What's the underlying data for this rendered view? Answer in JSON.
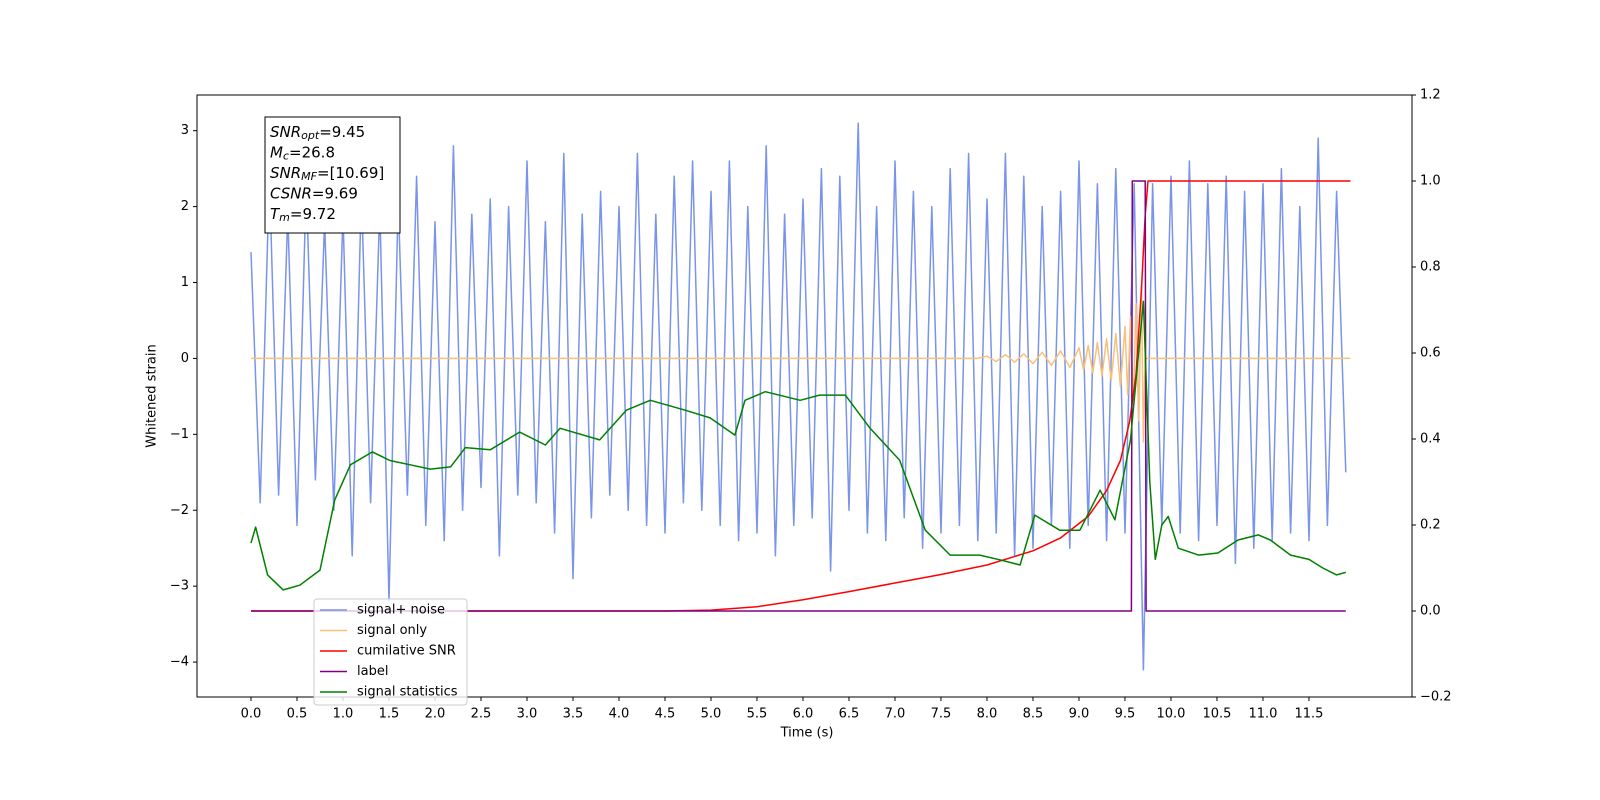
{
  "chart_data": {
    "type": "line",
    "xlabel": "Time (s)",
    "ylabel": "Whitened strain",
    "xlim": [
      -0.587,
      12.62
    ],
    "ylim": [
      -4.46,
      3.47
    ],
    "y2lim": [
      -0.2,
      1.2
    ],
    "xticks": [
      {
        "value": 0,
        "label": "0.0"
      },
      0.5,
      {
        "value": 1,
        "label": "1.0"
      },
      1.5,
      {
        "value": 2,
        "label": "2.0"
      },
      2.5,
      {
        "value": 3,
        "label": "3.0"
      },
      3.5,
      {
        "value": 4,
        "label": "4.0"
      },
      4.5,
      {
        "value": 5,
        "label": "5.0"
      },
      5.5,
      {
        "value": 6,
        "label": "6.0"
      },
      6.5,
      {
        "value": 7,
        "label": "7.0"
      },
      7.5,
      {
        "value": 8,
        "label": "8.0"
      },
      8.5,
      {
        "value": 9,
        "label": "9.0"
      },
      9.5,
      {
        "value": 10,
        "label": "10.0"
      },
      10.5,
      {
        "value": 11,
        "label": "11.0"
      },
      11.5
    ],
    "yticks": [
      {
        "value": -4,
        "label": "−4"
      },
      {
        "value": -3,
        "label": "−3"
      },
      {
        "value": -2,
        "label": "−2"
      },
      {
        "value": -1,
        "label": "−1"
      },
      0,
      1,
      2,
      3
    ],
    "y2ticks": [
      {
        "value": -0.2,
        "label": "−0.2"
      },
      {
        "value": 0,
        "label": "0.0"
      },
      0.2,
      0.4,
      0.6,
      0.8,
      {
        "value": 1,
        "label": "1.0"
      },
      1.2
    ],
    "grid": false,
    "annotations": [
      {
        "symbol": "SNR",
        "sub": "opt",
        "text": "=9.45"
      },
      {
        "symbol": "M",
        "sub": "c",
        "text": "=26.8"
      },
      {
        "symbol": "SNR",
        "sub": "MF",
        "text": "=[10.69]"
      },
      {
        "symbol": "CSNR",
        "text": "=9.69"
      },
      {
        "symbol": "T",
        "sub": "m",
        "text": "=9.72"
      }
    ],
    "series": [
      {
        "name": "signal+ noise",
        "color": "#7994e8",
        "axis": "y",
        "x": [
          0,
          0.1,
          0.2,
          0.3,
          0.4,
          0.5,
          0.6,
          0.7,
          0.8,
          0.9,
          1,
          1.1,
          1.2,
          1.3,
          1.4,
          1.5,
          1.6,
          1.7,
          1.8,
          1.9,
          2,
          2.1,
          2.2,
          2.3,
          2.4,
          2.5,
          2.6,
          2.7,
          2.8,
          2.9,
          3,
          3.1,
          3.2,
          3.3,
          3.4,
          3.5,
          3.6,
          3.7,
          3.8,
          3.9,
          4,
          4.1,
          4.2,
          4.3,
          4.4,
          4.5,
          4.6,
          4.7,
          4.8,
          4.9,
          5,
          5.1,
          5.2,
          5.3,
          5.4,
          5.5,
          5.6,
          5.7,
          5.8,
          5.9,
          6,
          6.1,
          6.2,
          6.3,
          6.4,
          6.5,
          6.6,
          6.7,
          6.8,
          6.9,
          7,
          7.1,
          7.2,
          7.3,
          7.4,
          7.5,
          7.6,
          7.7,
          7.8,
          7.9,
          8,
          8.1,
          8.2,
          8.3,
          8.4,
          8.5,
          8.6,
          8.7,
          8.8,
          8.9,
          9,
          9.1,
          9.2,
          9.3,
          9.4,
          9.5,
          9.6,
          9.7,
          9.8,
          9.9,
          10,
          10.1,
          10.2,
          10.3,
          10.4,
          10.5,
          10.6,
          10.7,
          10.8,
          10.9,
          11,
          11.1,
          11.2,
          11.3,
          11.4,
          11.5,
          11.6,
          11.7,
          11.8,
          11.9
        ],
        "values": [
          1.4,
          -1.9,
          2.4,
          -1.8,
          1.9,
          -2.2,
          2.3,
          -1.6,
          1.8,
          -2.0,
          1.9,
          -2.6,
          2.2,
          -1.9,
          2.0,
          -3.2,
          2.1,
          -1.8,
          2.4,
          -2.2,
          1.8,
          -2.4,
          2.8,
          -2.0,
          1.9,
          -1.7,
          2.1,
          -2.6,
          2.0,
          -1.8,
          2.6,
          -1.9,
          1.8,
          -2.3,
          2.7,
          -2.9,
          1.9,
          -2.1,
          2.2,
          -1.8,
          2.0,
          -2.0,
          2.7,
          -2.2,
          1.9,
          -2.3,
          2.4,
          -1.9,
          2.6,
          -2.0,
          2.2,
          -2.2,
          2.6,
          -2.4,
          2.0,
          -2.3,
          2.8,
          -2.6,
          1.9,
          -2.2,
          2.1,
          -2.1,
          2.5,
          -2.8,
          2.4,
          -2.0,
          3.1,
          -2.3,
          2.0,
          -2.4,
          2.6,
          -2.1,
          2.2,
          -2.5,
          2.0,
          -2.3,
          2.5,
          -2.2,
          2.7,
          -2.4,
          2.1,
          -2.3,
          2.7,
          -2.6,
          2.4,
          -2.5,
          2.0,
          -2.2,
          2.2,
          -2.5,
          2.6,
          -2.2,
          2.3,
          -2.4,
          2.5,
          -2.3,
          2.3,
          -4.1,
          2.3,
          -2.2,
          2.4,
          -2.3,
          2.6,
          -2.4,
          2.3,
          -2.2,
          2.4,
          -2.7,
          2.2,
          -2.5,
          2.3,
          -2.4,
          2.5,
          -2.3,
          2.0,
          -2.4,
          2.9,
          -2.2,
          2.2,
          -1.5
        ]
      },
      {
        "name": "signal only",
        "color": "#f9c07a",
        "axis": "y",
        "x": [
          0,
          7.9,
          8.0,
          8.1,
          8.2,
          8.3,
          8.4,
          8.5,
          8.6,
          8.7,
          8.8,
          8.9,
          9.0,
          9.05,
          9.1,
          9.15,
          9.2,
          9.25,
          9.3,
          9.35,
          9.4,
          9.45,
          9.5,
          9.53,
          9.56,
          9.59,
          9.62,
          9.65,
          9.68,
          9.7,
          9.72,
          11.95
        ],
        "values": [
          0,
          0,
          0.03,
          -0.04,
          0.05,
          -0.05,
          0.06,
          -0.07,
          0.08,
          -0.09,
          0.1,
          -0.12,
          0.14,
          -0.15,
          0.17,
          -0.19,
          0.21,
          -0.23,
          0.26,
          -0.29,
          0.33,
          -0.37,
          0.42,
          -0.48,
          0.55,
          -0.63,
          0.72,
          -0.82,
          0.95,
          -1.1,
          0,
          0
        ]
      },
      {
        "name": "cumilative SNR",
        "color": "#ff0000",
        "axis": "y2",
        "x": [
          0,
          4.5,
          5.0,
          5.5,
          6.0,
          6.5,
          7.0,
          7.5,
          8.0,
          8.5,
          8.8,
          9.1,
          9.3,
          9.45,
          9.55,
          9.62,
          9.68,
          9.72,
          9.75,
          11.95
        ],
        "values": [
          0,
          0,
          0.002,
          0.01,
          0.026,
          0.045,
          0.065,
          0.085,
          0.107,
          0.14,
          0.17,
          0.22,
          0.28,
          0.35,
          0.44,
          0.55,
          0.75,
          0.92,
          1.0,
          1.0
        ]
      },
      {
        "name": "label",
        "color": "#800080",
        "axis": "y2",
        "x": [
          0,
          9.57,
          9.58,
          9.72,
          9.73,
          11.9
        ],
        "values": [
          0,
          0,
          1,
          1,
          0,
          0
        ]
      },
      {
        "name": "signal statistics",
        "color": "#008000",
        "axis": "y2",
        "x": [
          0,
          0.05,
          0.18,
          0.35,
          0.53,
          0.75,
          0.91,
          1.08,
          1.32,
          1.51,
          1.73,
          1.95,
          2.17,
          2.33,
          2.6,
          2.92,
          3.2,
          3.36,
          3.79,
          4.08,
          4.34,
          4.72,
          4.99,
          5.26,
          5.37,
          5.59,
          5.97,
          6.18,
          6.46,
          6.73,
          7.05,
          7.33,
          7.6,
          7.92,
          8.14,
          8.36,
          8.52,
          8.79,
          9.01,
          9.23,
          9.39,
          9.56,
          9.7,
          9.77,
          9.83,
          9.9,
          9.97,
          10.08,
          10.3,
          10.51,
          10.73,
          10.95,
          11.08,
          11.3,
          11.5,
          11.65,
          11.8,
          11.9
        ],
        "values": [
          0.158,
          0.195,
          0.084,
          0.049,
          0.06,
          0.095,
          0.258,
          0.34,
          0.37,
          0.35,
          0.34,
          0.33,
          0.335,
          0.38,
          0.375,
          0.416,
          0.386,
          0.425,
          0.398,
          0.467,
          0.49,
          0.467,
          0.449,
          0.409,
          0.49,
          0.51,
          0.49,
          0.502,
          0.502,
          0.425,
          0.351,
          0.188,
          0.13,
          0.13,
          0.119,
          0.107,
          0.223,
          0.188,
          0.188,
          0.281,
          0.212,
          0.398,
          0.72,
          0.3,
          0.12,
          0.2,
          0.22,
          0.146,
          0.13,
          0.135,
          0.165,
          0.177,
          0.165,
          0.13,
          0.12,
          0.1,
          0.084,
          0.09
        ]
      }
    ]
  }
}
